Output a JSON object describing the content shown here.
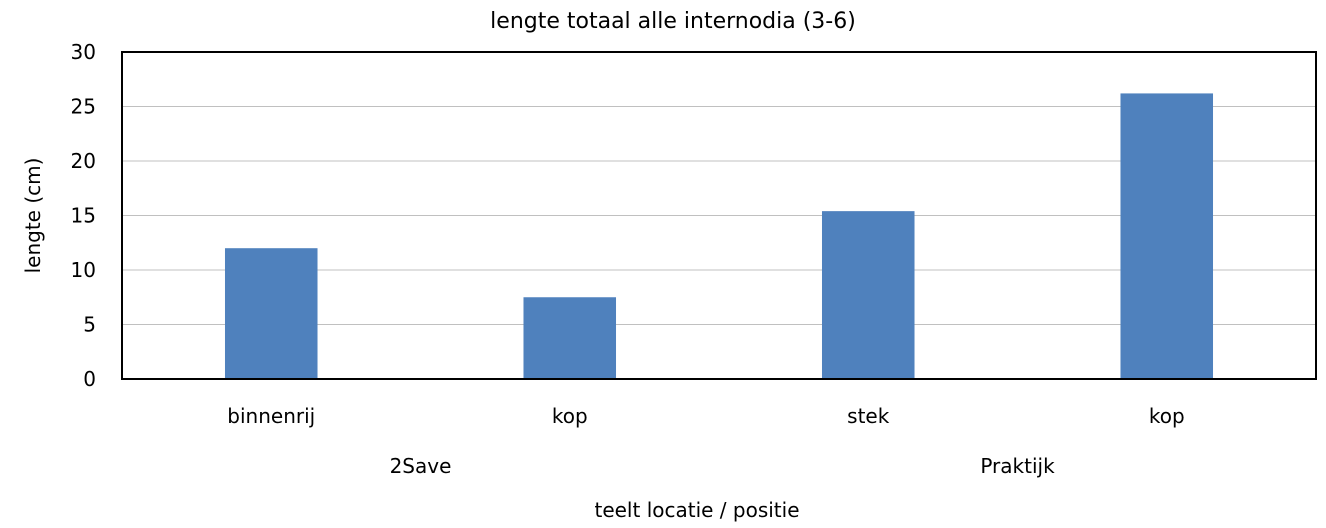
{
  "chart_data": {
    "type": "bar",
    "title": "lengte totaal alle internodia (3-6)",
    "xlabel": "teelt locatie / positie",
    "ylabel": "lengte (cm)",
    "ylim": [
      0,
      30
    ],
    "yticks": [
      0,
      5,
      10,
      15,
      20,
      25,
      30
    ],
    "grid": true,
    "categories": [
      "binnenrij",
      "kop",
      "stek",
      "kop"
    ],
    "groups": [
      {
        "label": "2Save",
        "span": [
          0,
          1
        ]
      },
      {
        "label": "Praktijk",
        "span": [
          2,
          3
        ]
      }
    ],
    "values": [
      12.0,
      7.5,
      15.4,
      26.2
    ],
    "bar_color": "#4f81bd",
    "grid_color": "#c0c0c0",
    "axis_color": "#000000"
  }
}
